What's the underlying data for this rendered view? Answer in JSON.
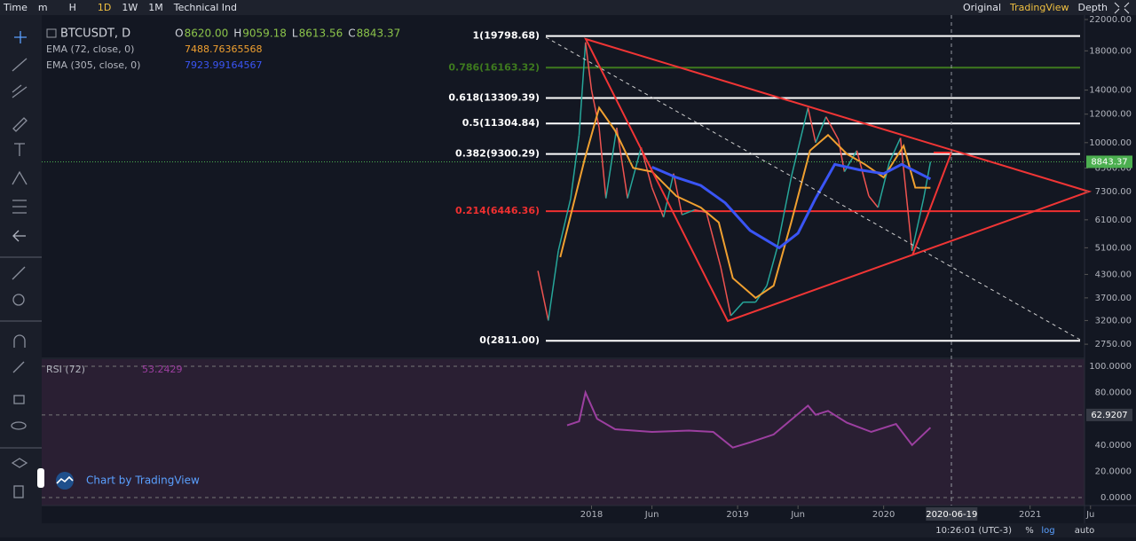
{
  "toolbar": {
    "left": [
      "Time",
      "m",
      "H",
      "1D",
      "1W",
      "1M",
      "Technical Ind"
    ],
    "left_active": 3,
    "right": [
      "Original",
      "TradingView",
      "Depth"
    ],
    "right_active": 1
  },
  "legend": {
    "symbol": "BTCUSDT, D",
    "ohlc": [
      {
        "key": "O",
        "text": "8620.00"
      },
      {
        "key": "H",
        "text": "9059.18"
      },
      {
        "key": "L",
        "text": "8613.56"
      },
      {
        "key": "C",
        "text": "8843.37"
      }
    ]
  },
  "indicators": [
    {
      "name": "EMA (72, close, 0)",
      "value": "7488.76365568",
      "color": "#f0a030"
    },
    {
      "name": "EMA (305, close, 0)",
      "value": "7923.99164567",
      "color": "#3a55f5"
    }
  ],
  "chart_data": {
    "type": "line",
    "log_scale": true,
    "xlim": [
      "2014-03-29",
      "2021-05-17"
    ],
    "ylim": [
      2527,
      22634
    ],
    "yticks": [
      {
        "value": 22000,
        "label": "22000.00"
      },
      {
        "value": 18000,
        "label": "18000.00"
      },
      {
        "value": 14000,
        "label": "14000.00"
      },
      {
        "value": 12000,
        "label": "12000.00"
      },
      {
        "value": 10000,
        "label": "10000.00"
      },
      {
        "value": 8500,
        "label": "8500.00"
      },
      {
        "value": 7300,
        "label": "7300.00"
      },
      {
        "value": 6100,
        "label": "6100.00"
      },
      {
        "value": 5100,
        "label": "5100.00"
      },
      {
        "value": 4300,
        "label": "4300.00"
      },
      {
        "value": 3700,
        "label": "3700.00"
      },
      {
        "value": 3200,
        "label": "3200.00"
      },
      {
        "value": 2750,
        "label": "2750.00"
      }
    ],
    "xticks": [
      {
        "value": "2018-01-01",
        "label": "2018"
      },
      {
        "value": "2018-06-01",
        "label": "Jun"
      },
      {
        "value": "2019-01-01",
        "label": "2019"
      },
      {
        "value": "2019-06-01",
        "label": "Jun"
      },
      {
        "value": "2020-01-01",
        "label": "2020"
      },
      {
        "value": "2021-01-01",
        "label": "2021"
      },
      {
        "value": "2021-06-01",
        "label": "Ju"
      }
    ],
    "cursor_date": {
      "value": "2020-06-19",
      "label": "2020-06-19"
    },
    "last_price": {
      "value": 8843.37,
      "label": "8843.37",
      "color": "#4caf50"
    },
    "series": [
      {
        "name": "BTCUSDT",
        "color": "#26a69a",
        "down_color": "#ef5350",
        "x": [
          "2017-08-20",
          "2017-09-15",
          "2017-10-10",
          "2017-11-10",
          "2017-12-01",
          "2017-12-17",
          "2018-01-01",
          "2018-01-20",
          "2018-02-06",
          "2018-03-05",
          "2018-04-01",
          "2018-05-05",
          "2018-06-01",
          "2018-06-30",
          "2018-07-25",
          "2018-08-15",
          "2018-09-15",
          "2018-10-15",
          "2018-11-20",
          "2018-12-15",
          "2019-01-15",
          "2019-02-15",
          "2019-03-15",
          "2019-04-10",
          "2019-05-15",
          "2019-06-26",
          "2019-07-15",
          "2019-08-10",
          "2019-09-10",
          "2019-09-25",
          "2019-10-26",
          "2019-11-25",
          "2019-12-18",
          "2020-01-15",
          "2020-02-12",
          "2020-03-12",
          "2020-04-10",
          "2020-04-27"
        ],
        "values": [
          4400,
          3200,
          5000,
          7000,
          10500,
          19000,
          14000,
          11000,
          7000,
          11000,
          7000,
          9700,
          7500,
          6200,
          8200,
          6300,
          6500,
          6400,
          4500,
          3300,
          3600,
          3600,
          4000,
          5100,
          8000,
          12500,
          10000,
          11800,
          10200,
          8300,
          9500,
          7100,
          6600,
          8800,
          10300,
          5000,
          7000,
          8843.37
        ]
      },
      {
        "name": "EMA (72, close, 0)",
        "color": "#f0a030",
        "x": [
          "2017-10-15",
          "2017-12-15",
          "2018-01-20",
          "2018-03-01",
          "2018-04-15",
          "2018-06-01",
          "2018-08-01",
          "2018-10-01",
          "2018-11-15",
          "2018-12-20",
          "2019-02-15",
          "2019-04-01",
          "2019-05-15",
          "2019-07-01",
          "2019-08-15",
          "2019-10-01",
          "2019-11-15",
          "2020-01-01",
          "2020-02-20",
          "2020-03-20",
          "2020-04-27"
        ],
        "values": [
          4800,
          9000,
          12500,
          10800,
          8500,
          8300,
          7100,
          6600,
          6000,
          4200,
          3700,
          4000,
          6000,
          9500,
          10500,
          9300,
          8700,
          8000,
          9800,
          7500,
          7488.76
        ]
      },
      {
        "name": "EMA (305, close, 0)",
        "color": "#3a55f5",
        "x": [
          "2018-06-01",
          "2018-08-01",
          "2018-10-01",
          "2018-12-01",
          "2019-02-01",
          "2019-04-15",
          "2019-06-01",
          "2019-07-15",
          "2019-09-01",
          "2019-11-01",
          "2020-01-01",
          "2020-02-15",
          "2020-04-27"
        ],
        "values": [
          8550,
          8000,
          7600,
          6800,
          5700,
          5100,
          5600,
          7000,
          8700,
          8400,
          8200,
          8700,
          7923.99
        ]
      }
    ],
    "fib_levels": [
      {
        "value": 19798.68,
        "label": "1(19798.68)",
        "color": "#ffffff"
      },
      {
        "value": 16163.32,
        "label": "0.786(16163.32)",
        "color": "#3e7a1e"
      },
      {
        "value": 13309.39,
        "label": "0.618(13309.39)",
        "color": "#ffffff"
      },
      {
        "value": 11304.84,
        "label": "0.5(11304.84)",
        "color": "#ffffff"
      },
      {
        "value": 9300.29,
        "label": "0.382(9300.29)",
        "color": "#ffffff"
      },
      {
        "value": 6446.36,
        "label": "0.214(6446.36)",
        "color": "#f03030"
      },
      {
        "value": 2811.0,
        "label": "0(2811.00)",
        "color": "#ffffff"
      }
    ]
  },
  "rsi": {
    "title": "RSI (72)",
    "value": "53.2429",
    "color": "#9c3fa0",
    "ylim": [
      -6.1,
      105.4
    ],
    "yticks": [
      {
        "value": 100,
        "label": "100.0000"
      },
      {
        "value": 80,
        "label": "80.0000"
      },
      {
        "value": 40,
        "label": "40.0000"
      },
      {
        "value": 20,
        "label": "20.0000"
      },
      {
        "value": 0,
        "label": "0.0000"
      }
    ],
    "marker": {
      "value": 62.9207,
      "label": "62.9207"
    },
    "x": [
      "2017-11-01",
      "2017-12-01",
      "2017-12-17",
      "2018-01-15",
      "2018-03-01",
      "2018-06-01",
      "2018-09-01",
      "2018-11-01",
      "2018-12-20",
      "2019-02-01",
      "2019-04-01",
      "2019-06-26",
      "2019-07-15",
      "2019-08-15",
      "2019-10-01",
      "2019-12-01",
      "2020-02-01",
      "2020-03-12",
      "2020-04-27"
    ],
    "values": [
      55,
      58,
      80,
      60,
      52,
      50,
      51,
      50,
      38,
      42,
      48,
      70,
      63,
      66,
      57,
      50,
      56,
      40,
      53.24
    ]
  },
  "watermark": "Chart by TradingView",
  "status": {
    "time": "10:26:01 (UTC-3)",
    "buttons": [
      "%",
      "log",
      "auto"
    ],
    "active": 1
  }
}
